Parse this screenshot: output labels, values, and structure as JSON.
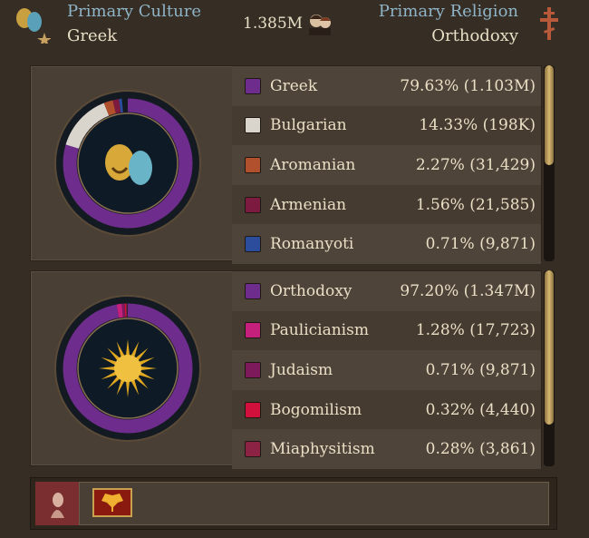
{
  "header": {
    "culture_label": "Primary Culture",
    "culture_value": "Greek",
    "population": "1.385M",
    "religion_label": "Primary Religion",
    "religion_value": "Orthodoxy",
    "icons": {
      "culture": "theater-masks-icon",
      "population": "population-icon",
      "religion": "orthodox-cross-icon"
    }
  },
  "cultures": [
    {
      "name": "Greek",
      "value": "79.63% (1.103M)",
      "pct": 79.63,
      "color": "#6e2d8c"
    },
    {
      "name": "Bulgarian",
      "value": "14.33% (198K)",
      "pct": 14.33,
      "color": "#d9d5cd"
    },
    {
      "name": "Aromanian",
      "value": "2.27% (31,429)",
      "pct": 2.27,
      "color": "#b0502c"
    },
    {
      "name": "Armenian",
      "value": "1.56% (21,585)",
      "pct": 1.56,
      "color": "#7c1a40"
    },
    {
      "name": "Romanyoti",
      "value": "0.71% (9,871)",
      "pct": 0.71,
      "color": "#2c4c9c"
    }
  ],
  "religions": [
    {
      "name": "Orthodoxy",
      "value": "97.20% (1.347M)",
      "pct": 97.2,
      "color": "#6e2d8c"
    },
    {
      "name": "Paulicianism",
      "value": "1.28% (17,723)",
      "pct": 1.28,
      "color": "#c4207c"
    },
    {
      "name": "Judaism",
      "value": "0.71% (9,871)",
      "pct": 0.71,
      "color": "#7c1a5c"
    },
    {
      "name": "Bogomilism",
      "value": "0.32% (4,440)",
      "pct": 0.32,
      "color": "#d2103c"
    },
    {
      "name": "Miaphysitism",
      "value": "0.28% (3,861)",
      "pct": 0.28,
      "color": "#8c2244"
    }
  ],
  "footer": {
    "icons": [
      "bust-icon",
      "double-headed-eagle-flag-icon"
    ]
  }
}
